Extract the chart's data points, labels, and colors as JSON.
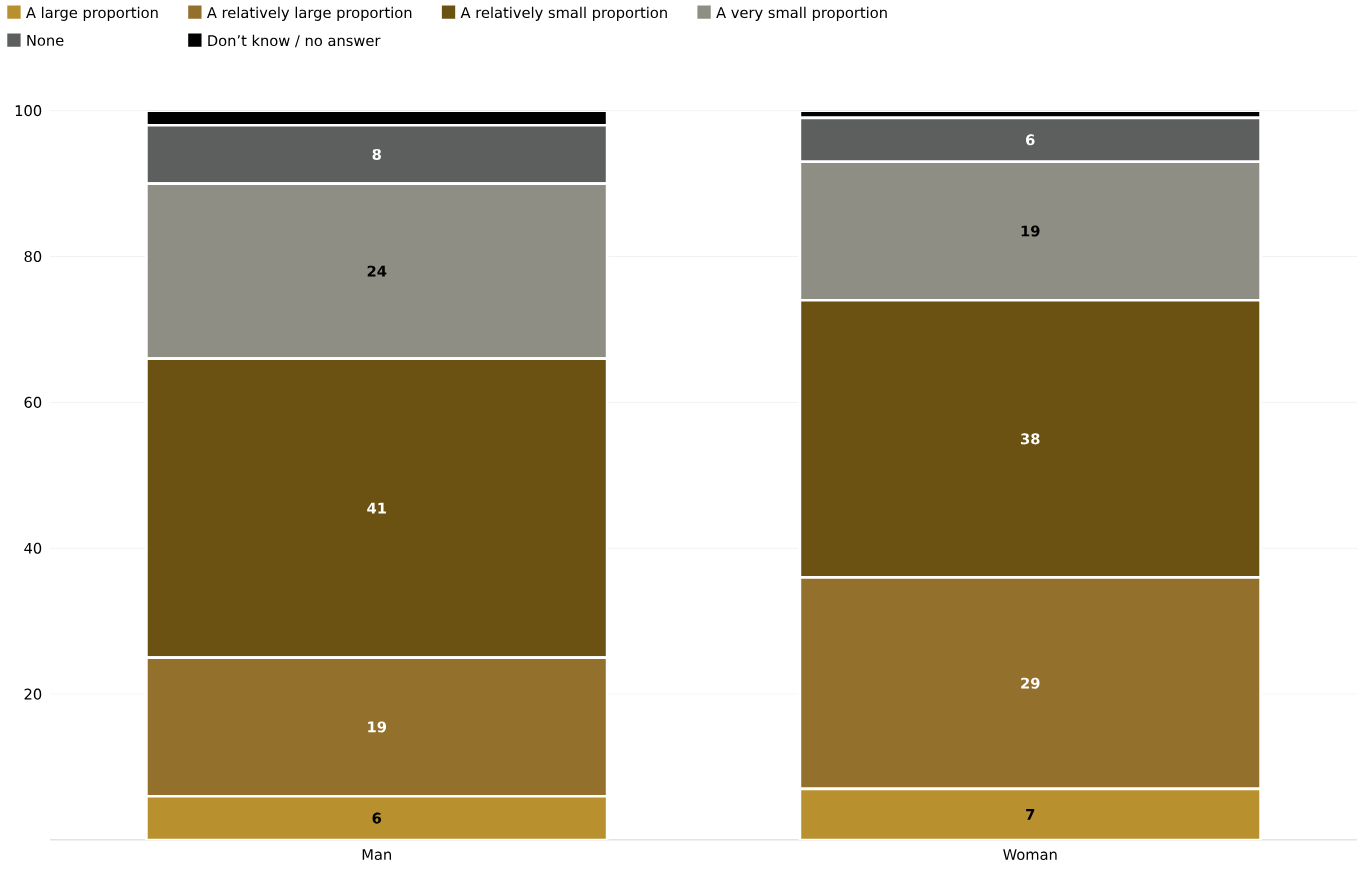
{
  "chart_data": {
    "type": "bar",
    "stacked": true,
    "categories": [
      "Man",
      "Woman"
    ],
    "series": [
      {
        "name": "A large proportion",
        "color": "#b8902e",
        "values": [
          6,
          7
        ],
        "value_labels": [
          "6",
          "7"
        ]
      },
      {
        "name": "A relatively large proportion",
        "color": "#94702d",
        "values": [
          19,
          29
        ],
        "value_labels": [
          "19",
          "29"
        ]
      },
      {
        "name": "A relatively small proportion",
        "color": "#6b5212",
        "values": [
          41,
          38
        ],
        "value_labels": [
          "41",
          "38"
        ]
      },
      {
        "name": "A very small proportion",
        "color": "#8e8e84",
        "values": [
          24,
          19
        ],
        "value_labels": [
          "24",
          "19"
        ]
      },
      {
        "name": "None",
        "color": "#5d5f5e",
        "values": [
          8,
          6
        ],
        "value_labels": [
          "8",
          "6"
        ]
      },
      {
        "name": "Don’t know / no answer",
        "color": "#000000",
        "values": [
          2,
          1
        ],
        "value_labels": [
          null,
          null
        ]
      }
    ],
    "ylim": [
      0,
      100
    ],
    "yticks": [
      20,
      40,
      60,
      80,
      100
    ],
    "grid": "y",
    "legend": "top left"
  }
}
